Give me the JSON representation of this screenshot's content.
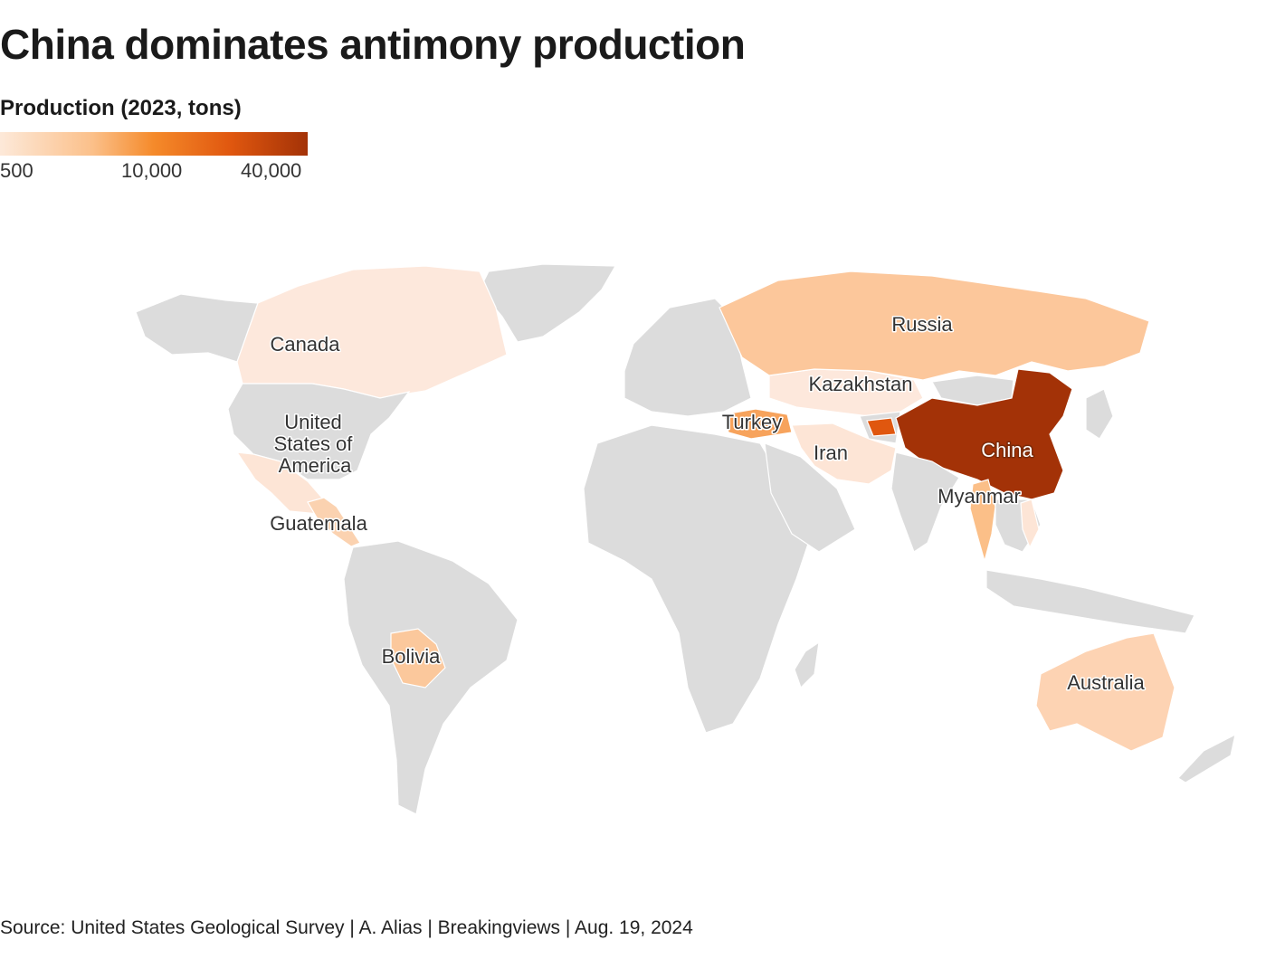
{
  "title": "China dominates antimony production",
  "legend": {
    "title": "Production (2023, tons)",
    "ticks": [
      "500",
      "10,000",
      "40,000"
    ],
    "scale_colors": [
      "#fde9d9",
      "#fbc08a",
      "#f58a2a",
      "#e0570f",
      "#a33207"
    ]
  },
  "map": {
    "base_land_color": "#dcdcdc",
    "countries": [
      {
        "name": "Canada",
        "label": "Canada",
        "color": "#fde8dc"
      },
      {
        "name": "United States of America",
        "label_lines": [
          "United",
          "States of",
          "America"
        ],
        "color": "#dcdcdc"
      },
      {
        "name": "Guatemala",
        "label": "Guatemala",
        "color": "#fbd2b0"
      },
      {
        "name": "Bolivia",
        "label": "Bolivia",
        "color": "#fbc89c"
      },
      {
        "name": "Russia",
        "label": "Russia",
        "color": "#fcc79b"
      },
      {
        "name": "Kazakhstan",
        "label": "Kazakhstan",
        "color": "#fde8dc"
      },
      {
        "name": "Turkey",
        "label": "Turkey",
        "color": "#f7a35c"
      },
      {
        "name": "Iran",
        "label": "Iran",
        "color": "#fde5d6"
      },
      {
        "name": "China",
        "label": "China",
        "color": "#a33207"
      },
      {
        "name": "Myanmar",
        "label": "Myanmar",
        "color": "#fbbf88"
      },
      {
        "name": "Australia",
        "label": "Australia",
        "color": "#fdd3b3"
      },
      {
        "name": "Tajikistan",
        "color": "#e0570f"
      },
      {
        "name": "Mexico",
        "color": "#fde5d6"
      },
      {
        "name": "Vietnam",
        "color": "#fde5d6"
      },
      {
        "name": "Laos",
        "color": "#fde8dc"
      }
    ]
  },
  "source": "Source: United States Geological Survey | A. Alias | Breakingviews | Aug. 19, 2024"
}
